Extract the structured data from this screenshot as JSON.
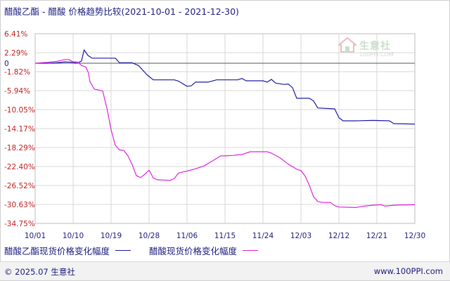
{
  "header": {
    "title": "醋酸乙酯 - 醋酸 价格趋势比较",
    "period": "(2021-10-01 - 2021-12-30)"
  },
  "watermark": {
    "brand": "生意社",
    "url": "100PPI.COM"
  },
  "footer": {
    "copyright": "© 2025.07 生意社",
    "site": "www.100PPI.com"
  },
  "colors": {
    "series1": "#1a1aa6",
    "series2": "#e020e0",
    "grid": "#d7d7d7",
    "text": "#1a1a80"
  },
  "chart_data": {
    "type": "line",
    "title": "醋酸乙酯 - 醋酸 价格趋势比较",
    "subtitle": "(2021-10-01 - 2021-12-30)",
    "x_tick_labels": [
      "10/01",
      "10/10",
      "10/19",
      "10/28",
      "11/06",
      "11/15",
      "11/24",
      "12/03",
      "12/12",
      "12/21",
      "12/30"
    ],
    "y_tick_labels": [
      "6.41%",
      "2.29%",
      "-1.82%",
      "-5.94%",
      "-10.05%",
      "-14.17%",
      "-18.29%",
      "-22.40%",
      "-26.52%",
      "-30.63%",
      "-34.75%"
    ],
    "zero_label": "0",
    "ylim": [
      -34.75,
      6.41
    ],
    "xlim": [
      0,
      90
    ],
    "grid": true,
    "legend_position": "bottom",
    "series": [
      {
        "name": "醋酸乙酯现货价格变化幅度",
        "points": [
          [
            0,
            0
          ],
          [
            3,
            0
          ],
          [
            5,
            0.1
          ],
          [
            7,
            0.3
          ],
          [
            9,
            0.2
          ],
          [
            10,
            0
          ],
          [
            11,
            0.5
          ],
          [
            11.6,
            2.9
          ],
          [
            12.5,
            1.7
          ],
          [
            13.5,
            1.1
          ],
          [
            15,
            1.1
          ],
          [
            19,
            1.1
          ],
          [
            20,
            0.1
          ],
          [
            23,
            0.1
          ],
          [
            24.5,
            -0.5
          ],
          [
            26.5,
            -2.5
          ],
          [
            28,
            -3.6
          ],
          [
            33,
            -3.6
          ],
          [
            34,
            -3.9
          ],
          [
            36,
            -5.0
          ],
          [
            37,
            -4.9
          ],
          [
            38,
            -4.1
          ],
          [
            41,
            -4.1
          ],
          [
            43,
            -3.6
          ],
          [
            47,
            -3.6
          ],
          [
            48,
            -3.6
          ],
          [
            49,
            -3.3
          ],
          [
            50,
            -3.8
          ],
          [
            54,
            -3.8
          ],
          [
            55,
            -4.1
          ],
          [
            56,
            -3.5
          ],
          [
            57,
            -4.3
          ],
          [
            59,
            -4.6
          ],
          [
            60,
            -4.5
          ],
          [
            61,
            -5.3
          ],
          [
            62,
            -7.6
          ],
          [
            65,
            -7.6
          ],
          [
            66,
            -8.2
          ],
          [
            67,
            -9.7
          ],
          [
            71,
            -9.9
          ],
          [
            72,
            -11.8
          ],
          [
            73,
            -12.5
          ],
          [
            76,
            -12.5
          ],
          [
            80,
            -12.4
          ],
          [
            84,
            -12.5
          ],
          [
            85,
            -13.1
          ],
          [
            90,
            -13.2
          ]
        ]
      },
      {
        "name": "醋酸现货价格变化幅度",
        "points": [
          [
            0,
            0
          ],
          [
            3,
            0.2
          ],
          [
            5,
            0.4
          ],
          [
            7,
            0.8
          ],
          [
            8,
            0.8
          ],
          [
            9,
            0.3
          ],
          [
            10,
            0.3
          ],
          [
            11,
            -0.5
          ],
          [
            12,
            -0.8
          ],
          [
            12.6,
            -2.0
          ],
          [
            13,
            -4.0
          ],
          [
            14,
            -5.6
          ],
          [
            15,
            -5.8
          ],
          [
            16,
            -6.0
          ],
          [
            17,
            -9.7
          ],
          [
            18,
            -14.4
          ],
          [
            19,
            -17.8
          ],
          [
            20,
            -18.8
          ],
          [
            21,
            -18.9
          ],
          [
            22,
            -20.1
          ],
          [
            23,
            -22.0
          ],
          [
            24,
            -24.4
          ],
          [
            25,
            -24.8
          ],
          [
            26,
            -24.1
          ],
          [
            27,
            -23.2
          ],
          [
            28,
            -24.9
          ],
          [
            29,
            -25.3
          ],
          [
            32,
            -25.4
          ],
          [
            33,
            -25.0
          ],
          [
            34,
            -23.8
          ],
          [
            36,
            -23.4
          ],
          [
            38,
            -22.9
          ],
          [
            40,
            -22.3
          ],
          [
            42,
            -21.2
          ],
          [
            44,
            -20.1
          ],
          [
            45,
            -20.1
          ],
          [
            47,
            -20.0
          ],
          [
            49,
            -19.8
          ],
          [
            50,
            -19.5
          ],
          [
            51,
            -19.2
          ],
          [
            55,
            -19.2
          ],
          [
            56,
            -19.5
          ],
          [
            58,
            -20.5
          ],
          [
            60,
            -21.9
          ],
          [
            62,
            -23.0
          ],
          [
            63,
            -23.3
          ],
          [
            64,
            -24.5
          ],
          [
            65,
            -26.5
          ],
          [
            66,
            -29.0
          ],
          [
            67,
            -30.0
          ],
          [
            68,
            -30.2
          ],
          [
            70,
            -30.2
          ],
          [
            71,
            -30.9
          ],
          [
            72,
            -31.2
          ],
          [
            76,
            -31.3
          ],
          [
            78,
            -31.0
          ],
          [
            80,
            -30.8
          ],
          [
            82,
            -30.7
          ],
          [
            83,
            -31.0
          ],
          [
            85,
            -30.8
          ],
          [
            90,
            -30.7
          ]
        ]
      }
    ]
  }
}
